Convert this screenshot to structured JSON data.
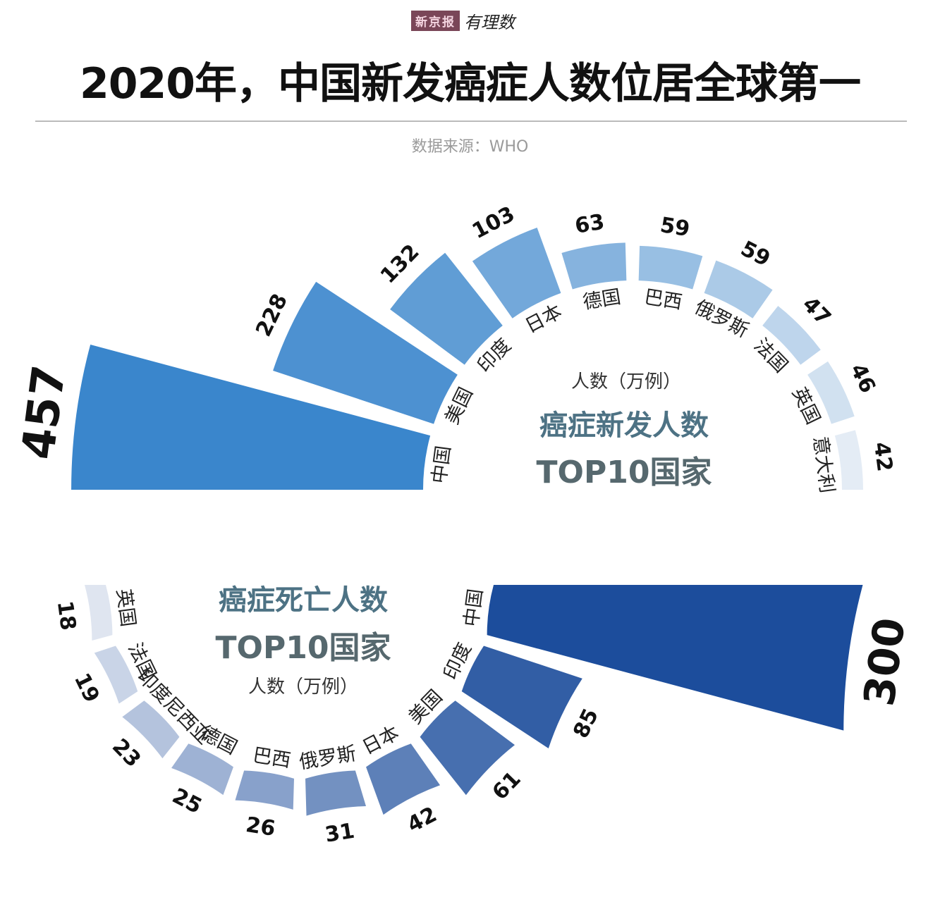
{
  "logo": {
    "brand": "新京报",
    "column": "有理数"
  },
  "title": "2020年，中国新发癌症人数位居全球第一",
  "source": "数据来源：WHO",
  "chart_data": [
    {
      "type": "radial-bar",
      "title": "癌症新发人数",
      "subtitle": "TOP10国家",
      "unit": "人数（万例）",
      "categories": [
        "中国",
        "美国",
        "印度",
        "日本",
        "德国",
        "巴西",
        "俄罗斯",
        "法国",
        "英国",
        "意大利"
      ],
      "values": [
        457,
        228,
        132,
        103,
        63,
        59,
        59,
        47,
        46,
        42
      ],
      "color_dark": "#3a86cc",
      "color_light": "#e4ecf5"
    },
    {
      "type": "radial-bar",
      "title": "癌症死亡人数",
      "subtitle": "TOP10国家",
      "unit": "人数（万例）",
      "categories": [
        "中国",
        "印度",
        "美国",
        "日本",
        "俄罗斯",
        "巴西",
        "德国",
        "印度尼西亚",
        "法国",
        "英国"
      ],
      "values": [
        300,
        85,
        61,
        42,
        31,
        26,
        25,
        23,
        19,
        18
      ],
      "color_dark": "#1c4d9c",
      "color_light": "#dfe5f0"
    }
  ]
}
